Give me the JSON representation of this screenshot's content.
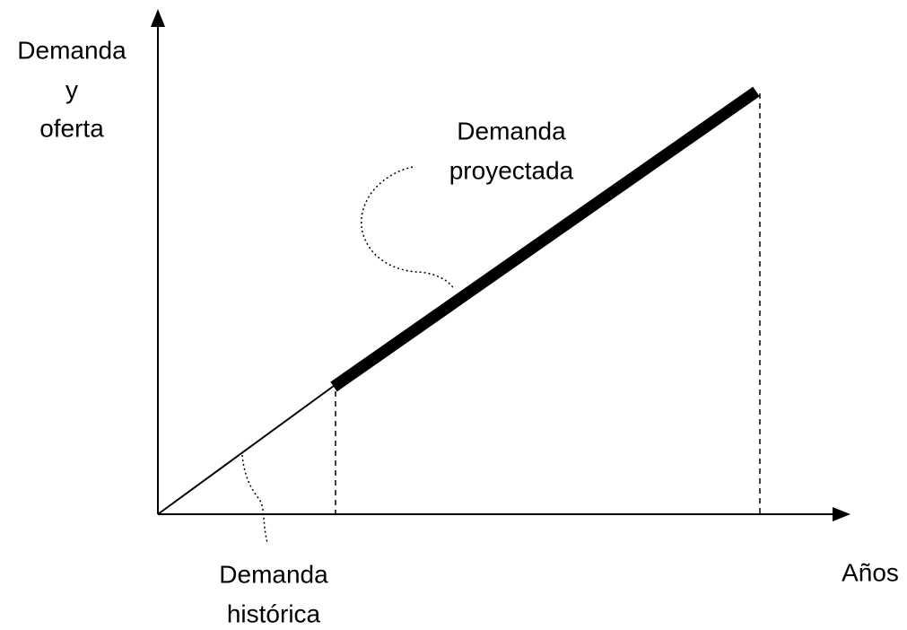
{
  "diagram": {
    "y_axis_label": [
      "Demanda",
      "y",
      "oferta"
    ],
    "x_axis_label": "Años",
    "projected_label": [
      "Demanda",
      "proyectada"
    ],
    "historical_label": [
      "Demanda",
      "histórica"
    ]
  }
}
